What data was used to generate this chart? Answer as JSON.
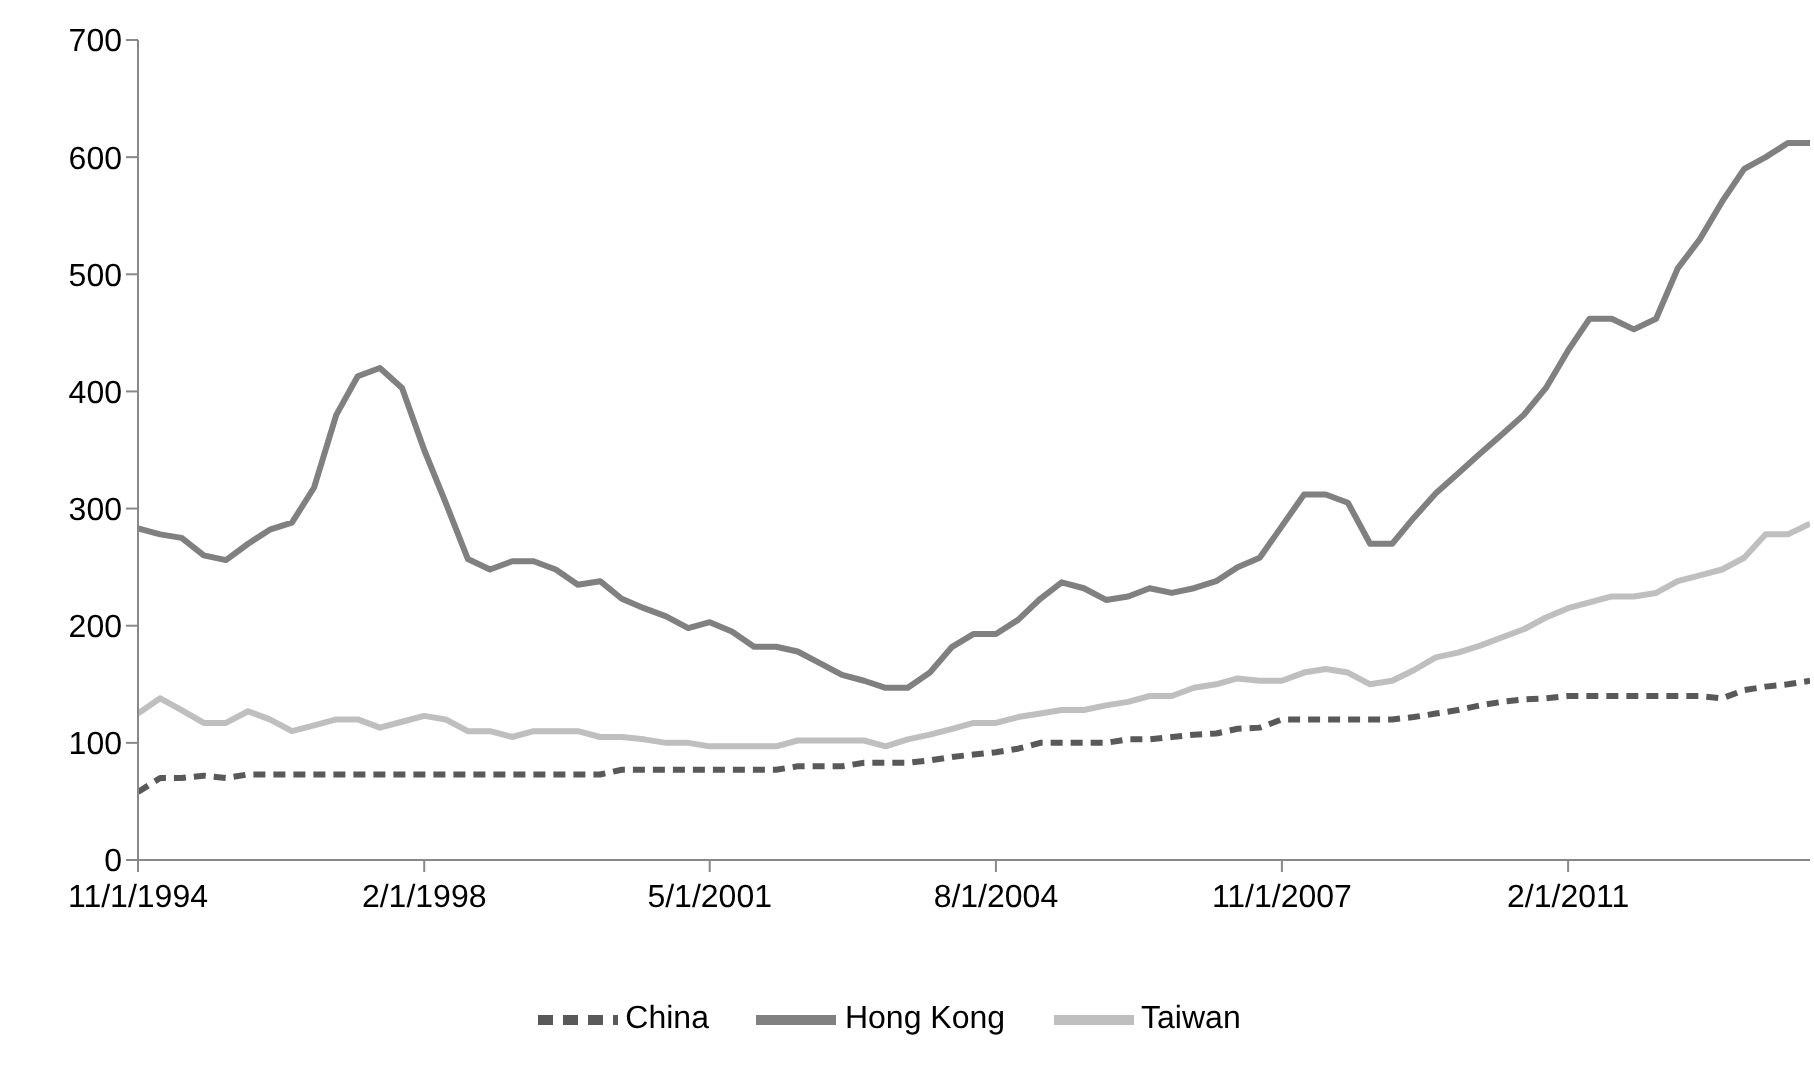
{
  "chart_data": {
    "type": "line",
    "x": [
      "1994-11-01",
      "1995-02-01",
      "1995-05-01",
      "1995-08-01",
      "1995-11-01",
      "1996-02-01",
      "1996-05-01",
      "1996-08-01",
      "1996-11-01",
      "1997-02-01",
      "1997-05-01",
      "1997-08-01",
      "1997-11-01",
      "1998-02-01",
      "1998-05-01",
      "1998-08-01",
      "1998-11-01",
      "1999-02-01",
      "1999-05-01",
      "1999-08-01",
      "1999-11-01",
      "2000-02-01",
      "2000-05-01",
      "2000-08-01",
      "2000-11-01",
      "2001-02-01",
      "2001-05-01",
      "2001-08-01",
      "2001-11-01",
      "2002-02-01",
      "2002-05-01",
      "2002-08-01",
      "2002-11-01",
      "2003-02-01",
      "2003-05-01",
      "2003-08-01",
      "2003-11-01",
      "2004-02-01",
      "2004-05-01",
      "2004-08-01",
      "2004-11-01",
      "2005-02-01",
      "2005-05-01",
      "2005-08-01",
      "2005-11-01",
      "2006-02-01",
      "2006-05-01",
      "2006-08-01",
      "2006-11-01",
      "2007-02-01",
      "2007-05-01",
      "2007-08-01",
      "2007-11-01",
      "2008-02-01",
      "2008-05-01",
      "2008-08-01",
      "2008-11-01",
      "2009-02-01",
      "2009-05-01",
      "2009-08-01",
      "2009-11-01",
      "2010-02-01",
      "2010-05-01",
      "2010-08-01",
      "2010-11-01",
      "2011-02-01",
      "2011-05-01",
      "2011-08-01",
      "2011-11-01",
      "2012-02-01",
      "2012-05-01",
      "2012-08-01",
      "2012-11-01",
      "2013-02-01",
      "2013-05-01",
      "2013-08-01",
      "2013-11-01"
    ],
    "series": [
      {
        "name": "China",
        "color": "#595959",
        "line_style": "dashed",
        "values": [
          58,
          70,
          70,
          72,
          70,
          73,
          73,
          73,
          73,
          73,
          73,
          73,
          73,
          73,
          73,
          73,
          73,
          73,
          73,
          73,
          73,
          73,
          77,
          77,
          77,
          77,
          77,
          77,
          77,
          77,
          80,
          80,
          80,
          83,
          83,
          83,
          85,
          88,
          90,
          92,
          95,
          100,
          100,
          100,
          100,
          103,
          103,
          105,
          107,
          108,
          112,
          113,
          120,
          120,
          120,
          120,
          120,
          120,
          122,
          125,
          128,
          132,
          135,
          137,
          138,
          140,
          140,
          140,
          140,
          140,
          140,
          140,
          138,
          145,
          148,
          150,
          153
        ]
      },
      {
        "name": "Taiwan",
        "color": "#bfbfbf",
        "line_style": "solid",
        "values": [
          125,
          138,
          128,
          117,
          117,
          127,
          120,
          110,
          115,
          120,
          120,
          113,
          118,
          123,
          120,
          110,
          110,
          105,
          110,
          110,
          110,
          105,
          105,
          103,
          100,
          100,
          97,
          97,
          97,
          97,
          102,
          102,
          102,
          102,
          97,
          103,
          107,
          112,
          117,
          117,
          122,
          125,
          128,
          128,
          132,
          135,
          140,
          140,
          147,
          150,
          155,
          153,
          153,
          160,
          163,
          160,
          150,
          153,
          162,
          173,
          177,
          183,
          190,
          197,
          207,
          215,
          220,
          225,
          225,
          228,
          238,
          243,
          248,
          258,
          278,
          278,
          287
        ]
      },
      {
        "name": "Hong Kong",
        "color": "#808080",
        "line_style": "solid",
        "values": [
          283,
          278,
          275,
          260,
          256,
          270,
          282,
          288,
          318,
          380,
          413,
          420,
          403,
          350,
          305,
          257,
          248,
          255,
          255,
          248,
          235,
          238,
          223,
          215,
          208,
          198,
          203,
          195,
          182,
          182,
          178,
          168,
          158,
          153,
          147,
          147,
          160,
          182,
          193,
          193,
          205,
          223,
          237,
          232,
          222,
          225,
          232,
          228,
          232,
          238,
          250,
          258,
          285,
          312,
          312,
          305,
          270,
          270,
          292,
          313,
          330,
          347,
          363,
          380,
          403,
          435,
          462,
          462,
          453,
          462,
          505,
          530,
          562,
          590,
          600,
          612,
          612
        ]
      }
    ],
    "xlim": [
      "1994-11-01",
      "2013-11-01"
    ],
    "xticks": [
      {
        "value": "1994-11-01",
        "label": "11/1/1994"
      },
      {
        "value": "1998-02-01",
        "label": "2/1/1998"
      },
      {
        "value": "2001-05-01",
        "label": "5/1/2001"
      },
      {
        "value": "2004-08-01",
        "label": "8/1/2004"
      },
      {
        "value": "2007-11-01",
        "label": "11/1/2007"
      },
      {
        "value": "2011-02-01",
        "label": "2/1/2011"
      }
    ],
    "ylim": [
      0,
      700
    ],
    "yticks": [
      0,
      100,
      200,
      300,
      400,
      500,
      600,
      700
    ],
    "legend": "bottom",
    "marker": "none"
  }
}
